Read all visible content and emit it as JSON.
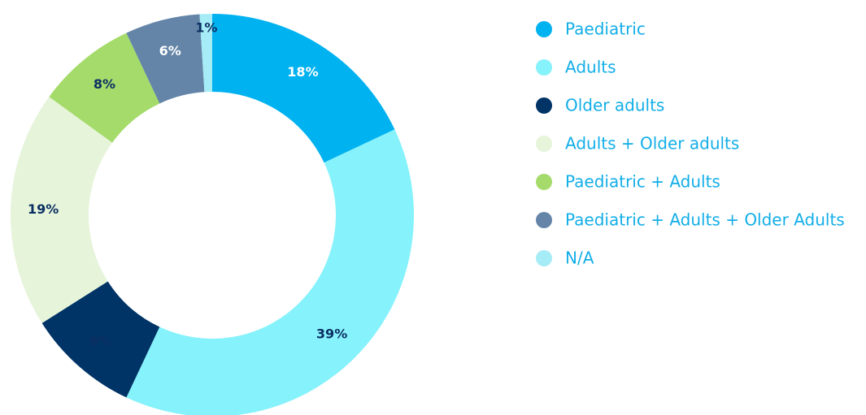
{
  "chart_data": {
    "type": "donut",
    "categories": [
      "Paediatric",
      "Adults",
      "Older adults",
      "Adults + Older adults",
      "Paediatric + Adults",
      "Paediatric + Adults + Older Adults",
      "N/A"
    ],
    "values": [
      18,
      39,
      9,
      19,
      8,
      6,
      1
    ],
    "value_labels": [
      "18%",
      "39%",
      "9%",
      "19%",
      "8%",
      "6%",
      "1%"
    ],
    "colors": [
      "#00b2f0",
      "#86f2fb",
      "#003366",
      "#e6f4da",
      "#a4db6a",
      "#6485a8",
      "#a6ecf7"
    ],
    "legend": "right"
  }
}
